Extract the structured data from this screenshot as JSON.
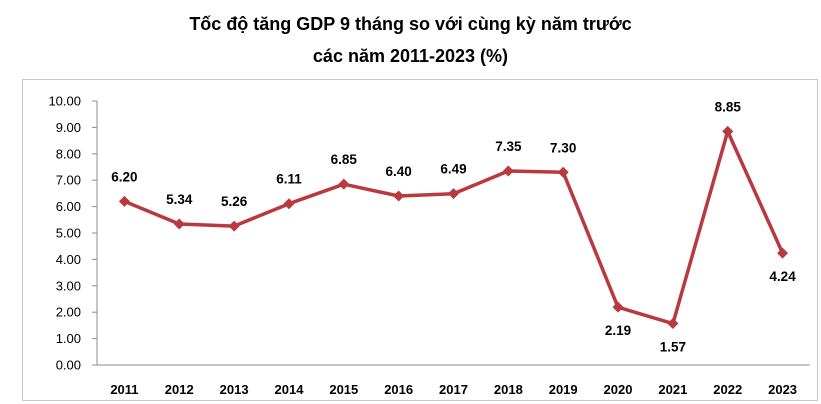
{
  "chart_data": {
    "type": "line",
    "title_line1": "Tốc độ tăng GDP 9 tháng so với cùng kỳ năm trước",
    "title_line2": "các năm 2011-2023 (%)",
    "categories": [
      "2011",
      "2012",
      "2013",
      "2014",
      "2015",
      "2016",
      "2017",
      "2018",
      "2019",
      "2020",
      "2021",
      "2022",
      "2023"
    ],
    "values": [
      6.2,
      5.34,
      5.26,
      6.11,
      6.85,
      6.4,
      6.49,
      7.35,
      7.3,
      2.19,
      1.57,
      8.85,
      4.24
    ],
    "data_labels": [
      "6.20",
      "5.34",
      "5.26",
      "6.11",
      "6.85",
      "6.40",
      "6.49",
      "7.35",
      "7.30",
      "2.19",
      "1.57",
      "8.85",
      "4.24"
    ],
    "label_position": [
      "above",
      "above",
      "above",
      "above",
      "above",
      "above",
      "above",
      "above",
      "above",
      "below",
      "below",
      "above",
      "below"
    ],
    "ylim": [
      0,
      10
    ],
    "yticks": [
      "0.00",
      "1.00",
      "2.00",
      "3.00",
      "4.00",
      "5.00",
      "6.00",
      "7.00",
      "8.00",
      "9.00",
      "10.00"
    ],
    "grid": false,
    "legend": "none",
    "line_color": "#b8393e",
    "marker": "diamond"
  }
}
